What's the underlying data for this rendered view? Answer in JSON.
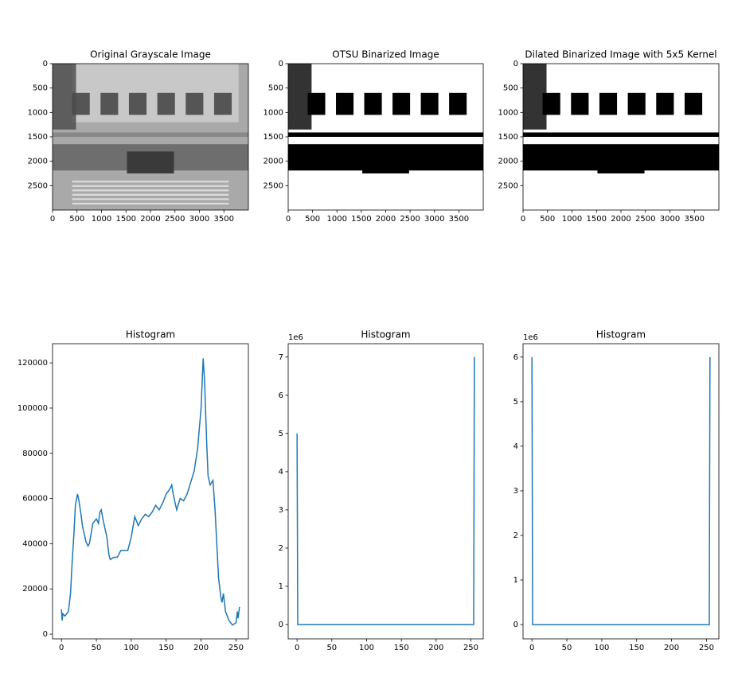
{
  "chart_data": [
    {
      "type": "image",
      "title": "Original Grayscale Image",
      "style": "gray",
      "xlim": [
        0,
        4000
      ],
      "ylim": [
        3000,
        0
      ],
      "xticks": [
        0,
        500,
        1000,
        1500,
        2000,
        2500,
        3000,
        3500
      ],
      "yticks": [
        0,
        500,
        1000,
        1500,
        2000,
        2500
      ]
    },
    {
      "type": "image",
      "title": "OTSU Binarized Image",
      "style": "binary",
      "xlim": [
        0,
        4000
      ],
      "ylim": [
        3000,
        0
      ],
      "xticks": [
        0,
        500,
        1000,
        1500,
        2000,
        2500,
        3000,
        3500
      ],
      "yticks": [
        0,
        500,
        1000,
        1500,
        2000,
        2500
      ]
    },
    {
      "type": "image",
      "title": "Dilated Binarized Image with 5x5 Kernel",
      "style": "binary",
      "xlim": [
        0,
        4000
      ],
      "ylim": [
        3000,
        0
      ],
      "xticks": [
        0,
        500,
        1000,
        1500,
        2000,
        2500,
        3000,
        3500
      ],
      "yticks": [
        0,
        500,
        1000,
        1500,
        2000,
        2500
      ]
    },
    {
      "type": "line",
      "title": "Histogram",
      "color": "#1f77b4",
      "xlim": [
        -12.75,
        267.75
      ],
      "ylim": [
        -2100,
        128500
      ],
      "xticks": [
        0,
        50,
        100,
        150,
        200,
        250
      ],
      "yticks": [
        0,
        20000,
        40000,
        60000,
        80000,
        100000,
        120000
      ],
      "x": [
        0,
        1,
        2,
        5,
        10,
        13,
        15,
        18,
        20,
        23,
        25,
        28,
        30,
        35,
        38,
        40,
        45,
        50,
        53,
        55,
        57,
        60,
        65,
        68,
        70,
        75,
        80,
        85,
        90,
        95,
        100,
        105,
        110,
        115,
        120,
        125,
        130,
        135,
        140,
        145,
        150,
        155,
        158,
        160,
        165,
        170,
        175,
        180,
        185,
        190,
        195,
        200,
        203,
        205,
        208,
        210,
        213,
        217,
        220,
        225,
        228,
        230,
        232,
        235,
        240,
        245,
        250,
        252,
        253,
        255
      ],
      "values": [
        11000,
        6000,
        9000,
        8000,
        10000,
        18000,
        30000,
        45000,
        57000,
        62000,
        59000,
        53000,
        48000,
        41000,
        39000,
        40000,
        49000,
        51000,
        49000,
        54000,
        55000,
        50000,
        43000,
        35000,
        33000,
        34000,
        34000,
        37000,
        37000,
        37000,
        43000,
        52000,
        48000,
        51000,
        53000,
        52000,
        54000,
        57000,
        55000,
        58000,
        62000,
        64000,
        66000,
        62000,
        55000,
        60000,
        59000,
        62000,
        67000,
        72000,
        82000,
        100000,
        122000,
        112000,
        85000,
        70000,
        66000,
        68000,
        55000,
        25000,
        17000,
        14000,
        18000,
        10000,
        6000,
        4000,
        5000,
        10000,
        7000,
        12000
      ]
    },
    {
      "type": "line",
      "title": "Histogram",
      "color": "#1f77b4",
      "offset_label": "1e6",
      "xlim": [
        -12.75,
        267.75
      ],
      "ylim": [
        -0.375,
        7.35
      ],
      "xticks": [
        0,
        50,
        100,
        150,
        200,
        250
      ],
      "yticks": [
        0,
        1,
        2,
        3,
        4,
        5,
        6,
        7
      ],
      "x": [
        0,
        1,
        254,
        255
      ],
      "values": [
        5,
        0,
        0,
        7
      ]
    },
    {
      "type": "line",
      "title": "Histogram",
      "color": "#1f77b4",
      "offset_label": "1e6",
      "xlim": [
        -12.75,
        267.75
      ],
      "ylim": [
        -0.32,
        6.3
      ],
      "xticks": [
        0,
        50,
        100,
        150,
        200,
        250
      ],
      "yticks": [
        0,
        1,
        2,
        3,
        4,
        5,
        6
      ],
      "x": [
        0,
        1,
        254,
        255
      ],
      "values": [
        6,
        0,
        0,
        6
      ]
    }
  ]
}
